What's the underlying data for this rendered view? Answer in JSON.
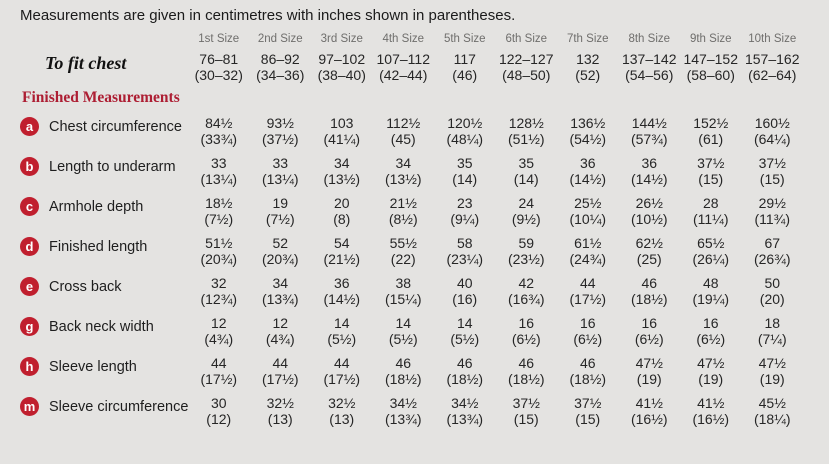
{
  "intro": "Measurements are given in centimetres with inches shown in parentheses.",
  "colors": {
    "background": "#e4e3e1",
    "badge_red": "#c01f2e",
    "heading_red": "#ad1e33",
    "header_gray": "#6f6e6c",
    "text": "#262626"
  },
  "table": {
    "size_headers": [
      "1st Size",
      "2nd Size",
      "3rd Size",
      "4th Size",
      "5th Size",
      "6th Size",
      "7th Size",
      "8th Size",
      "9th Size",
      "10th Size"
    ],
    "to_fit_chest": {
      "label": "To fit chest",
      "cm": [
        "76–81",
        "86–92",
        "97–102",
        "107–112",
        "117",
        "122–127",
        "132",
        "137–142",
        "147–152",
        "157–162"
      ],
      "in": [
        "(30–32)",
        "(34–36)",
        "(38–40)",
        "(42–44)",
        "(46)",
        "(48–50)",
        "(52)",
        "(54–56)",
        "(58–60)",
        "(62–64)"
      ]
    },
    "section_heading": "Finished Measurements",
    "rows": [
      {
        "key": "a",
        "label": "Chest circumference",
        "cm": [
          "84½",
          "93½",
          "103",
          "112½",
          "120½",
          "128½",
          "136½",
          "144½",
          "152½",
          "160½"
        ],
        "in": [
          "(33¾)",
          "(37½)",
          "(41¼)",
          "(45)",
          "(48¼)",
          "(51½)",
          "(54½)",
          "(57¾)",
          "(61)",
          "(64¼)"
        ]
      },
      {
        "key": "b",
        "label": "Length to underarm",
        "cm": [
          "33",
          "33",
          "34",
          "34",
          "35",
          "35",
          "36",
          "36",
          "37½",
          "37½"
        ],
        "in": [
          "(13¼)",
          "(13¼)",
          "(13½)",
          "(13½)",
          "(14)",
          "(14)",
          "(14½)",
          "(14½)",
          "(15)",
          "(15)"
        ]
      },
      {
        "key": "c",
        "label": "Armhole depth",
        "cm": [
          "18½",
          "19",
          "20",
          "21½",
          "23",
          "24",
          "25½",
          "26½",
          "28",
          "29½"
        ],
        "in": [
          "(7½)",
          "(7½)",
          "(8)",
          "(8½)",
          "(9¼)",
          "(9½)",
          "(10¼)",
          "(10½)",
          "(11¼)",
          "(11¾)"
        ]
      },
      {
        "key": "d",
        "label": "Finished length",
        "cm": [
          "51½",
          "52",
          "54",
          "55½",
          "58",
          "59",
          "61½",
          "62½",
          "65½",
          "67"
        ],
        "in": [
          "(20¾)",
          "(20¾)",
          "(21½)",
          "(22)",
          "(23¼)",
          "(23½)",
          "(24¾)",
          "(25)",
          "(26¼)",
          "(26¾)"
        ]
      },
      {
        "key": "e",
        "label": "Cross back",
        "cm": [
          "32",
          "34",
          "36",
          "38",
          "40",
          "42",
          "44",
          "46",
          "48",
          "50"
        ],
        "in": [
          "(12¾)",
          "(13¾)",
          "(14½)",
          "(15¼)",
          "(16)",
          "(16¾)",
          "(17½)",
          "(18½)",
          "(19¼)",
          "(20)"
        ]
      },
      {
        "key": "g",
        "label": "Back neck width",
        "cm": [
          "12",
          "12",
          "14",
          "14",
          "14",
          "16",
          "16",
          "16",
          "16",
          "18"
        ],
        "in": [
          "(4¾)",
          "(4¾)",
          "(5½)",
          "(5½)",
          "(5½)",
          "(6½)",
          "(6½)",
          "(6½)",
          "(6½)",
          "(7¼)"
        ]
      },
      {
        "key": "h",
        "label": "Sleeve length",
        "cm": [
          "44",
          "44",
          "44",
          "46",
          "46",
          "46",
          "46",
          "47½",
          "47½",
          "47½"
        ],
        "in": [
          "(17½)",
          "(17½)",
          "(17½)",
          "(18½)",
          "(18½)",
          "(18½)",
          "(18½)",
          "(19)",
          "(19)",
          "(19)"
        ]
      },
      {
        "key": "m",
        "label": "Sleeve circumference",
        "cm": [
          "30",
          "32½",
          "32½",
          "34½",
          "34½",
          "37½",
          "37½",
          "41½",
          "41½",
          "45½"
        ],
        "in": [
          "(12)",
          "(13)",
          "(13)",
          "(13¾)",
          "(13¾)",
          "(15)",
          "(15)",
          "(16½)",
          "(16½)",
          "(18¼)"
        ]
      }
    ]
  }
}
